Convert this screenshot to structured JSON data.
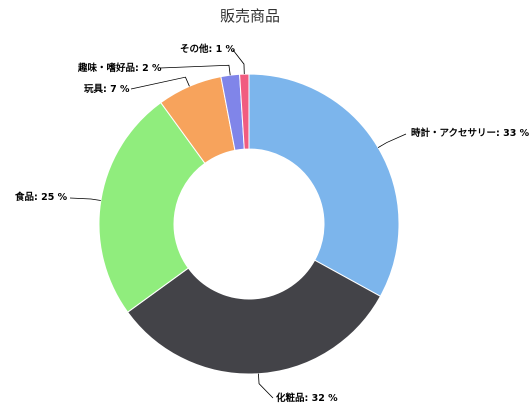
{
  "chart_data": {
    "type": "pie",
    "variant": "donut",
    "title": "販売商品",
    "unit": "%",
    "slices": [
      {
        "name": "時計・アクセサリー",
        "value": 33,
        "color": "#7cb5ec"
      },
      {
        "name": "化粧品",
        "value": 32,
        "color": "#434348"
      },
      {
        "name": "食品",
        "value": 25,
        "color": "#90ed7d"
      },
      {
        "name": "玩具",
        "value": 7,
        "color": "#f7a35c"
      },
      {
        "name": "趣味・嗜好品",
        "value": 2,
        "color": "#8085e9"
      },
      {
        "name": "その他",
        "value": 1,
        "color": "#f15c80"
      }
    ],
    "legend": "none",
    "data_labels": "outside-with-leader-lines"
  }
}
